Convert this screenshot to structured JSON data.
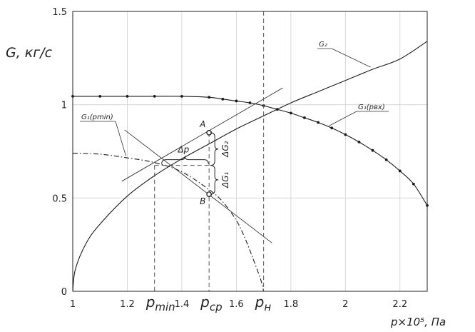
{
  "chart_data": {
    "type": "line",
    "xlabel": "p×10⁵, Па",
    "ylabel": "G, кг/с",
    "xlim": [
      1.0,
      2.3
    ],
    "ylim": [
      0,
      1.5
    ],
    "xticks": [
      {
        "value": 1.0,
        "label": "1"
      },
      {
        "value": 1.2,
        "label": "1.2"
      },
      {
        "value": 1.4,
        "label": "1.4"
      },
      {
        "value": 1.6,
        "label": "1.6"
      },
      {
        "value": 1.8,
        "label": "1.8"
      },
      {
        "value": 2.0,
        "label": "2"
      },
      {
        "value": 2.2,
        "label": "2.2"
      }
    ],
    "yticks": [
      {
        "value": 0,
        "label": "0"
      },
      {
        "value": 0.5,
        "label": "0.5"
      },
      {
        "value": 1.0,
        "label": "1"
      },
      {
        "value": 1.5,
        "label": "1.5"
      }
    ],
    "grid": true,
    "series": [
      {
        "name": "G₂",
        "style": "solid",
        "x": [
          1.0,
          1.01,
          1.05,
          1.1,
          1.2,
          1.3,
          1.4,
          1.5,
          1.6,
          1.7,
          1.8,
          1.9,
          2.0,
          2.1,
          2.2,
          2.3
        ],
        "y": [
          0.0,
          0.12,
          0.26,
          0.36,
          0.51,
          0.62,
          0.71,
          0.79,
          0.87,
          0.94,
          1.01,
          1.07,
          1.13,
          1.19,
          1.245,
          1.34
        ]
      },
      {
        "name": "G₁(pвх)",
        "style": "solid-dots",
        "x": [
          1.0,
          1.1,
          1.2,
          1.3,
          1.4,
          1.5,
          1.55,
          1.6,
          1.65,
          1.7,
          1.75,
          1.8,
          1.85,
          1.9,
          1.95,
          2.0,
          2.05,
          2.1,
          2.15,
          2.2,
          2.25,
          2.3
        ],
        "y": [
          1.045,
          1.045,
          1.045,
          1.045,
          1.045,
          1.04,
          1.03,
          1.02,
          1.01,
          0.995,
          0.975,
          0.955,
          0.93,
          0.905,
          0.875,
          0.84,
          0.8,
          0.755,
          0.705,
          0.645,
          0.575,
          0.46
        ]
      },
      {
        "name": "G₁(pmin)",
        "style": "dash-dot",
        "x": [
          1.0,
          1.1,
          1.2,
          1.3,
          1.4,
          1.5,
          1.55,
          1.6,
          1.63,
          1.66,
          1.69,
          1.7
        ],
        "y": [
          0.74,
          0.735,
          0.715,
          0.69,
          0.64,
          0.545,
          0.48,
          0.38,
          0.29,
          0.18,
          0.06,
          0.0
        ]
      }
    ],
    "tangents": [
      {
        "x": [
          1.18,
          1.77
        ],
        "y": [
          0.59,
          1.09
        ]
      },
      {
        "x": [
          1.19,
          1.73
        ],
        "y": [
          0.865,
          0.26
        ]
      }
    ],
    "points": [
      {
        "label": "A",
        "x": 1.5,
        "y": 0.85
      },
      {
        "label": "B",
        "x": 1.5,
        "y": 0.52
      }
    ],
    "vlines": [
      {
        "label_main": "p",
        "label_sub": "min",
        "x": 1.3,
        "y": 0.675
      },
      {
        "label_main": "p",
        "label_sub": "ср",
        "x": 1.5,
        "y": 0.85
      },
      {
        "label_main": "p",
        "label_sub": "н",
        "x": 1.7,
        "y": 1.5
      }
    ],
    "annotations": {
      "dp": "Δp",
      "dg2": "ΔG₂",
      "dg1": "ΔG₁",
      "g2_callout": "G₂",
      "g1_callout": "G₁(pвх)",
      "g1min_callout": "G₁(pmin)"
    }
  }
}
